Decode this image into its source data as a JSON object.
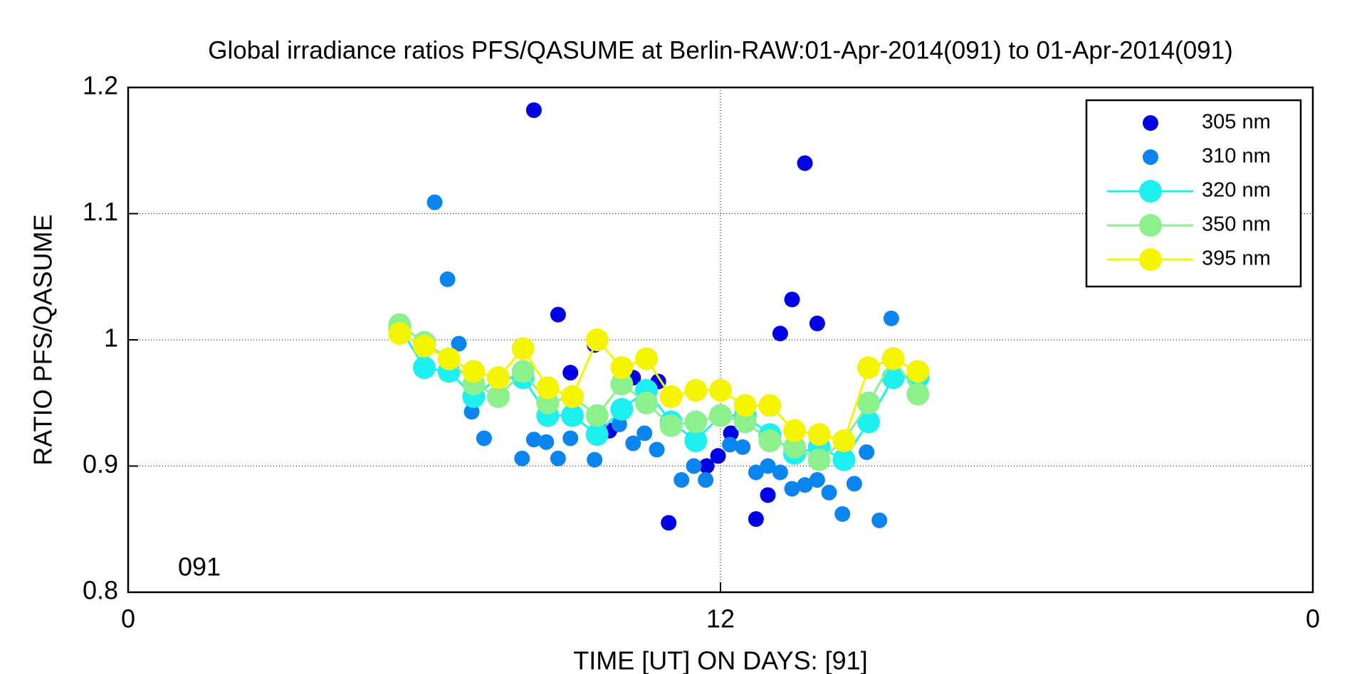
{
  "chart_data": {
    "type": "scatter",
    "title": "Global irradiance ratios PFS/QASUME at Berlin-RAW:01-Apr-2014(091) to 01-Apr-2014(091)",
    "xlabel": "TIME [UT]  ON  DAYS: [91]",
    "ylabel": "RATIO PFS/QASUME",
    "annotation": "091",
    "xlim": [
      0,
      24
    ],
    "xticks": [
      0,
      12,
      {
        "value": 24,
        "label": "0"
      }
    ],
    "ylim": [
      0.8,
      1.2
    ],
    "yticks": [
      0.8,
      0.9,
      1,
      1.1,
      1.2
    ],
    "grid": true,
    "legend": "upper right",
    "series": [
      {
        "name": "305 nm",
        "color": "#0000e6",
        "line": false,
        "x": [
          8.22,
          13.71,
          13.45,
          13.21,
          13.96,
          8.71,
          8.96,
          9.45,
          10.23,
          10.74,
          10.95,
          11.72,
          11.95,
          12.21,
          12.72,
          12.96,
          9.75,
          11.5
        ],
        "values": [
          1.182,
          1.14,
          1.032,
          1.005,
          1.013,
          1.02,
          0.974,
          0.996,
          0.97,
          0.967,
          0.855,
          0.9,
          0.908,
          0.926,
          0.858,
          0.877,
          0.928,
          0.918
        ]
      },
      {
        "name": "310 nm",
        "color": "#0a85f0",
        "line": false,
        "x": [
          6.21,
          6.47,
          6.7,
          6.96,
          7.21,
          7.98,
          8.22,
          8.47,
          8.71,
          8.96,
          9.45,
          9.95,
          10.23,
          10.46,
          10.71,
          11.21,
          11.46,
          11.7,
          12.19,
          12.45,
          12.72,
          12.96,
          13.21,
          13.45,
          13.71,
          13.96,
          14.2,
          14.47,
          14.71,
          14.96,
          15.22,
          15.46
        ],
        "values": [
          1.109,
          1.048,
          0.997,
          0.943,
          0.922,
          0.906,
          0.921,
          0.919,
          0.906,
          0.922,
          0.905,
          0.933,
          0.918,
          0.926,
          0.913,
          0.889,
          0.9,
          0.889,
          0.917,
          0.915,
          0.895,
          0.9,
          0.895,
          0.882,
          0.885,
          0.889,
          0.879,
          0.862,
          0.886,
          0.911,
          0.857,
          1.017
        ]
      },
      {
        "name": "320 nm",
        "color": "#1ef0f0",
        "line": true,
        "x": [
          5.5,
          6.0,
          6.5,
          7.0,
          7.5,
          8.0,
          8.5,
          9.0,
          9.5,
          10.0,
          10.5,
          11.0,
          11.5,
          12.0,
          12.5,
          13.0,
          13.5,
          14.0,
          14.5,
          15.0,
          15.5,
          16.0
        ],
        "values": [
          1.01,
          0.978,
          0.975,
          0.955,
          0.97,
          0.97,
          0.94,
          0.94,
          0.925,
          0.945,
          0.96,
          0.935,
          0.92,
          0.94,
          0.94,
          0.925,
          0.91,
          0.915,
          0.905,
          0.935,
          0.97,
          0.97
        ]
      },
      {
        "name": "350 nm",
        "color": "#8cf08c",
        "line": true,
        "x": [
          5.5,
          6.0,
          6.5,
          7.0,
          7.5,
          8.0,
          8.5,
          9.0,
          9.5,
          10.0,
          10.5,
          11.0,
          11.5,
          12.0,
          12.5,
          13.0,
          13.5,
          14.0,
          14.5,
          15.0,
          15.5,
          16.0
        ],
        "values": [
          1.012,
          0.998,
          0.985,
          0.965,
          0.955,
          0.975,
          0.95,
          0.955,
          0.94,
          0.965,
          0.95,
          0.932,
          0.935,
          0.94,
          0.935,
          0.92,
          0.915,
          0.905,
          0.92,
          0.95,
          0.985,
          0.957
        ]
      },
      {
        "name": "395 nm",
        "color": "#f5f500",
        "line": true,
        "x": [
          5.5,
          6.0,
          6.5,
          7.0,
          7.5,
          8.0,
          8.5,
          9.0,
          9.5,
          10.0,
          10.5,
          11.0,
          11.5,
          12.0,
          12.5,
          13.0,
          13.5,
          14.0,
          14.5,
          15.0,
          15.5,
          16.0
        ],
        "values": [
          1.005,
          0.995,
          0.985,
          0.975,
          0.97,
          0.993,
          0.962,
          0.955,
          1.0,
          0.978,
          0.985,
          0.955,
          0.96,
          0.96,
          0.948,
          0.948,
          0.928,
          0.925,
          0.92,
          0.978,
          0.985,
          0.975
        ]
      }
    ]
  }
}
